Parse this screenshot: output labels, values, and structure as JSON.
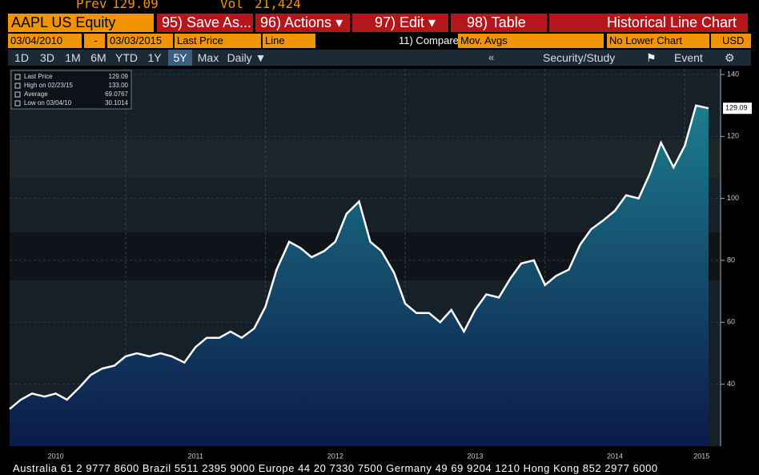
{
  "header": {
    "prev_label": "Prev",
    "prev_value": "129.09",
    "vol_label": "Vol",
    "vol_value": "21,424",
    "security": "AAPL US Equity",
    "save_as": "95) Save As...",
    "actions": "96) Actions",
    "edit": "97) Edit",
    "table": "98) Table",
    "view_title": "Historical Line Chart"
  },
  "fields": {
    "start_date": "03/04/2010",
    "dash": "-",
    "end_date": "03/03/2015",
    "field": "Last Price",
    "chart_style": "Line",
    "compare": "11) Compare",
    "mov_avgs": "Mov. Avgs",
    "lower_chart": "No Lower Chart",
    "currency": "USD"
  },
  "periods": [
    "1D",
    "3D",
    "1M",
    "6M",
    "YTD",
    "1Y",
    "5Y",
    "Max",
    "Daily"
  ],
  "tools": {
    "security_study": "Security/Study",
    "event": "Event"
  },
  "legend": [
    {
      "label": "Last Price",
      "value": "129.09"
    },
    {
      "label": "High on 02/23/15",
      "value": "133.00"
    },
    {
      "label": "Average",
      "value": "69.0767"
    },
    {
      "label": "Low on 03/04/10",
      "value": "30.1014"
    }
  ],
  "footer": "Australia 61 2 9777 8600 Brazil 5511 2395 9000 Europe 44 20 7330 7500 Germany 49 69 9204 1210 Hong Kong 852 2977 6000",
  "chart_data": {
    "type": "area",
    "color": "#ffffff",
    "last_label": "129.09",
    "x": [
      2010.17,
      2010.25,
      2010.33,
      2010.42,
      2010.5,
      2010.58,
      2010.67,
      2010.75,
      2010.83,
      2010.92,
      2011.0,
      2011.08,
      2011.17,
      2011.25,
      2011.33,
      2011.42,
      2011.5,
      2011.58,
      2011.67,
      2011.75,
      2011.83,
      2011.92,
      2012.0,
      2012.08,
      2012.17,
      2012.25,
      2012.33,
      2012.42,
      2012.5,
      2012.58,
      2012.67,
      2012.75,
      2012.83,
      2012.92,
      2013.0,
      2013.08,
      2013.17,
      2013.25,
      2013.33,
      2013.42,
      2013.5,
      2013.58,
      2013.67,
      2013.75,
      2013.83,
      2013.92,
      2014.0,
      2014.08,
      2014.17,
      2014.25,
      2014.33,
      2014.42,
      2014.5,
      2014.58,
      2014.67,
      2014.75,
      2014.83,
      2014.92,
      2015.0,
      2015.08,
      2015.17
    ],
    "values": [
      32,
      35,
      37,
      36,
      37,
      35,
      39,
      43,
      45,
      46,
      49,
      50,
      49,
      50,
      49,
      47,
      52,
      55,
      55,
      57,
      55,
      58,
      65,
      77,
      86,
      84,
      81,
      83,
      86,
      95,
      99,
      86,
      83,
      76,
      66,
      63,
      63,
      60,
      64,
      57,
      64,
      69,
      68,
      74,
      79,
      80,
      72,
      75,
      77,
      85,
      90,
      93,
      96,
      101,
      100,
      108,
      118,
      110,
      117,
      130,
      129.09
    ],
    "xlim": [
      2010.17,
      2015.17
    ],
    "ylim": [
      20,
      140
    ],
    "yticks": [
      40,
      60,
      80,
      100,
      120,
      140
    ],
    "xgrid": [
      2011,
      2012,
      2013,
      2014,
      2015
    ],
    "xticks": [
      {
        "value": 2010.5,
        "label": "2010"
      },
      {
        "value": 2011.5,
        "label": "2011"
      },
      {
        "value": 2012.5,
        "label": "2012"
      },
      {
        "value": 2013.5,
        "label": "2013"
      },
      {
        "value": 2014.5,
        "label": "2014"
      },
      {
        "value": 2015.12,
        "label": "2015"
      }
    ],
    "grid": true
  }
}
